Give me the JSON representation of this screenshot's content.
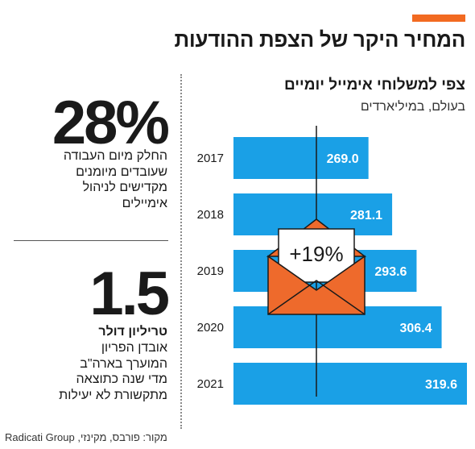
{
  "header": {
    "accent_color": "#f26a21",
    "title": "המחיר היקר של הצפת ההודעות"
  },
  "stats": [
    {
      "value": "28%",
      "lines": [
        "החלק מיום העבודה",
        "שעובדים מיומנים",
        "מקדישים לניהול",
        "אימיילים"
      ]
    },
    {
      "value": "1.5",
      "unit": "טריליון דולר",
      "lines": [
        "אובדן הפריון",
        "המוערך בארה\"ב",
        "מדי שנה כתוצאה",
        "מתקשורת לא יעילות"
      ]
    }
  ],
  "source": "מקור: פורבס, מקינזי, Radicati Group",
  "chart_data": {
    "type": "bar",
    "orientation": "horizontal",
    "title": "צפי למשלוחי אימייל יומיים",
    "subtitle": "בעולם, במיליארדים",
    "categories": [
      "2017",
      "2018",
      "2019",
      "2020",
      "2021"
    ],
    "values": [
      269.0,
      281.1,
      293.6,
      306.4,
      319.6
    ],
    "bar_color": "#1aa0e6",
    "annotation": "+19%",
    "annotation_icon": "envelope-icon",
    "annotation_color": "#ee6a2c"
  }
}
